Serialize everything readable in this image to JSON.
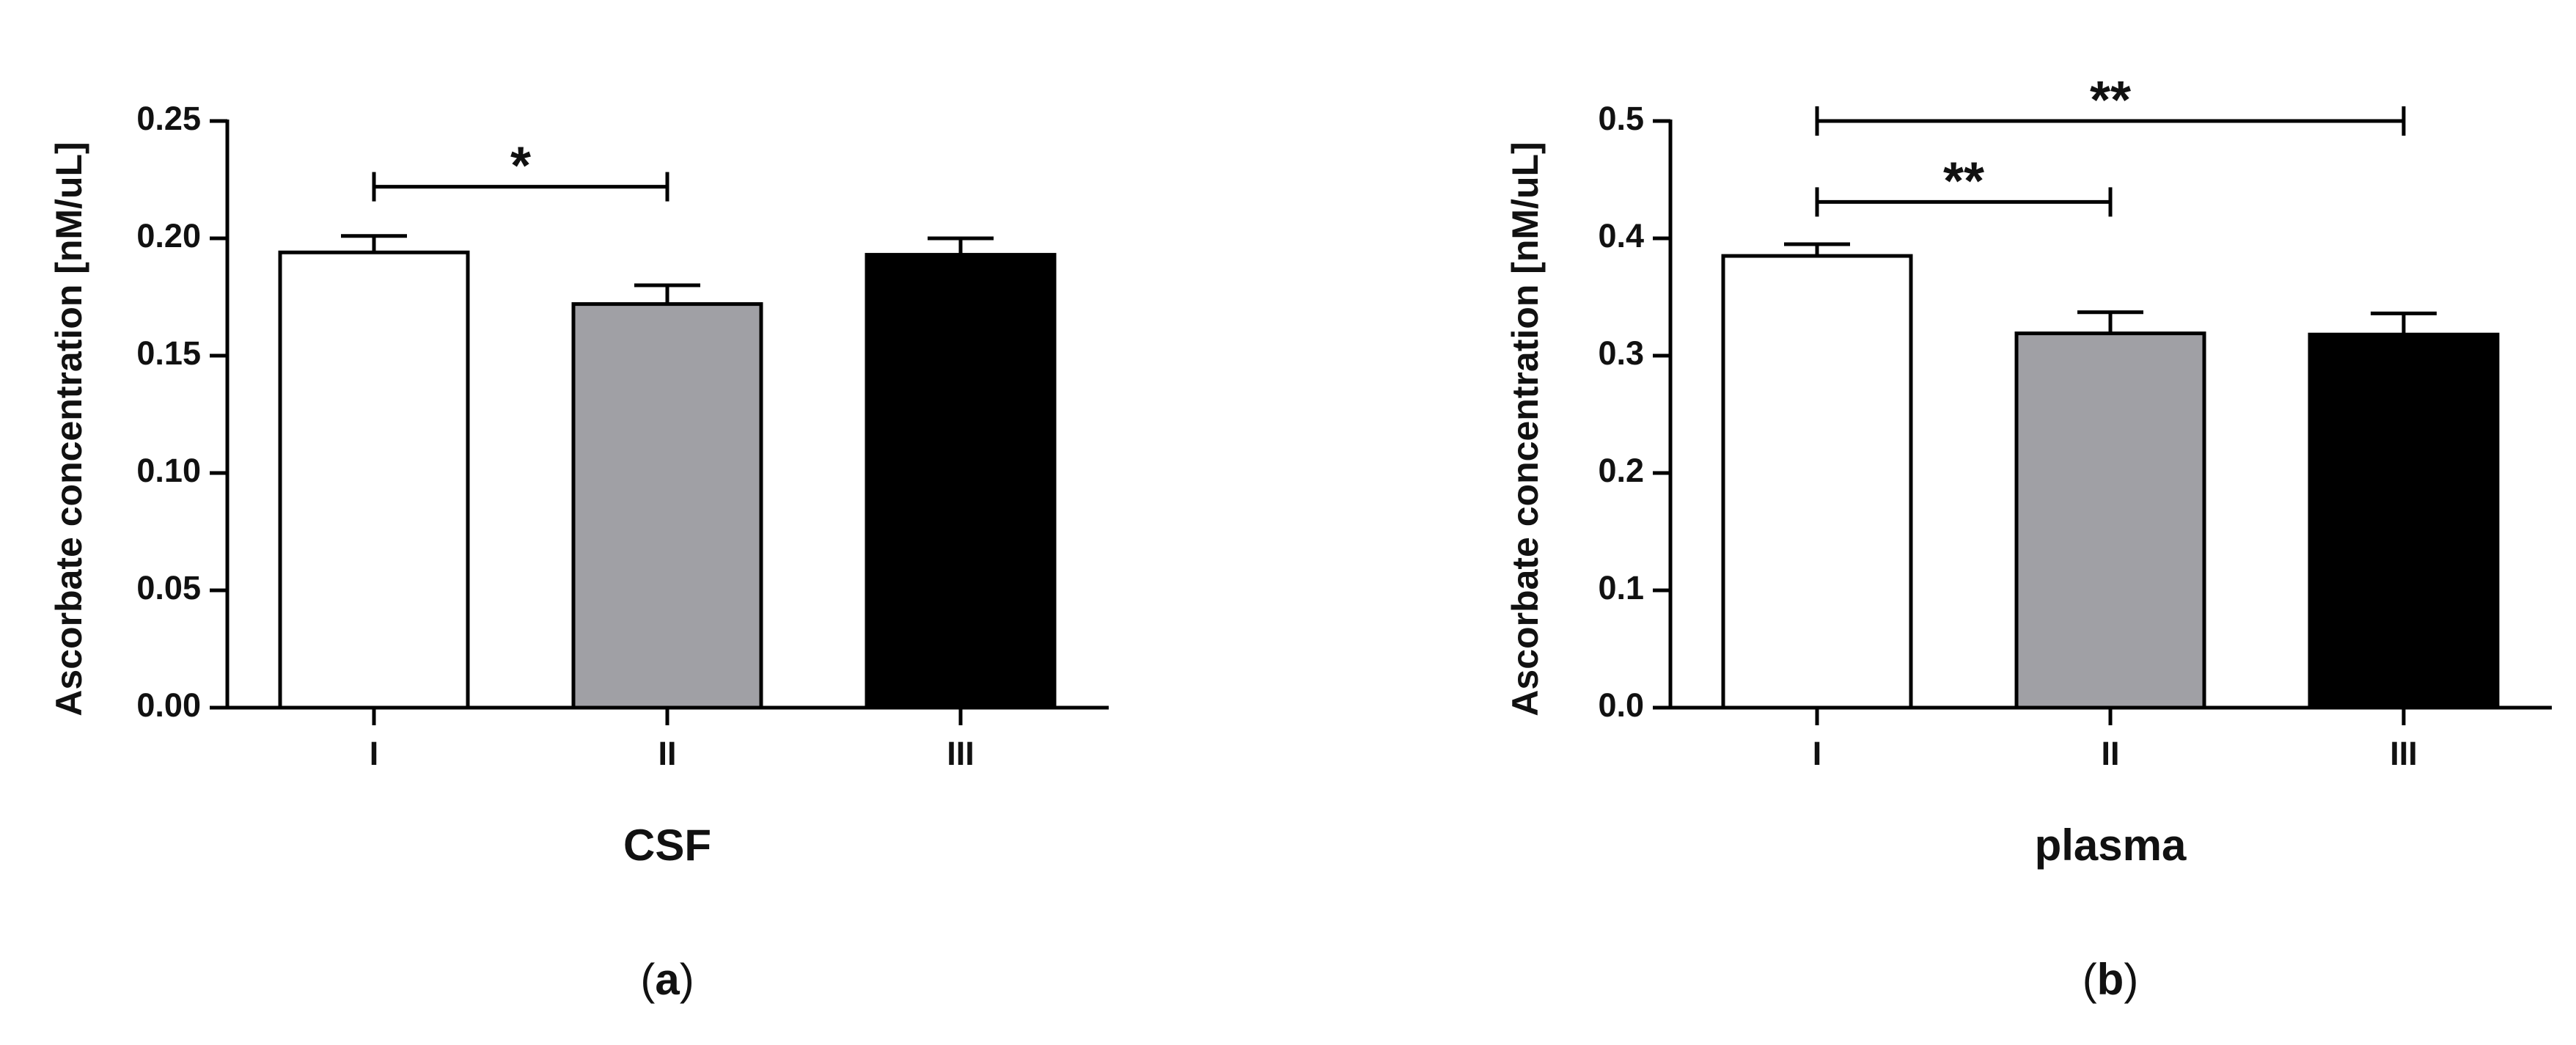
{
  "chart_data": [
    {
      "type": "bar",
      "panel": "a",
      "panel_label_letter": "a",
      "title": "",
      "xlabel": "CSF",
      "ylabel": "Ascorbate concentration [nM/uL]",
      "ylim": [
        0,
        0.25
      ],
      "yticks": [
        "0.00",
        "0.05",
        "0.10",
        "0.15",
        "0.20",
        "0.25"
      ],
      "categories": [
        "I",
        "II",
        "III"
      ],
      "values": [
        0.194,
        0.172,
        0.193
      ],
      "errors": [
        0.007,
        0.008,
        0.007
      ],
      "bar_colors": [
        "#ffffff",
        "#a0a0a5",
        "#000000"
      ],
      "grid": false,
      "significance": [
        {
          "from": "I",
          "to": "II",
          "y": 0.222,
          "label": "*"
        }
      ]
    },
    {
      "type": "bar",
      "panel": "b",
      "panel_label_letter": "b",
      "title": "",
      "xlabel": "plasma",
      "ylabel": "Ascorbate concentration [nM/uL]",
      "ylim": [
        0,
        0.5
      ],
      "yticks": [
        "0.0",
        "0.1",
        "0.2",
        "0.3",
        "0.4",
        "0.5"
      ],
      "categories": [
        "I",
        "II",
        "III"
      ],
      "values": [
        0.385,
        0.319,
        0.318
      ],
      "errors": [
        0.01,
        0.018,
        0.018
      ],
      "bar_colors": [
        "#ffffff",
        "#a0a0a5",
        "#000000"
      ],
      "grid": false,
      "significance": [
        {
          "from": "I",
          "to": "III",
          "y": 0.5,
          "label": "**"
        },
        {
          "from": "I",
          "to": "II",
          "y": 0.431,
          "label": "**"
        }
      ]
    }
  ]
}
